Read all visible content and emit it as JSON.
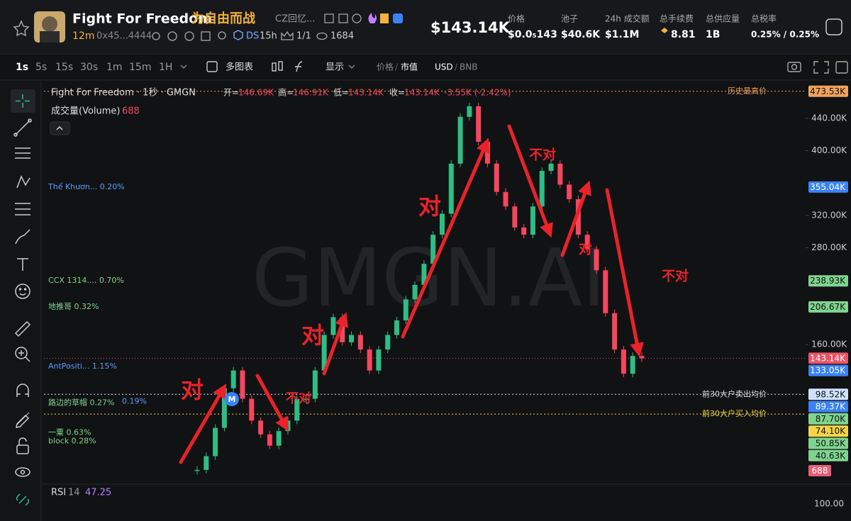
{
  "header": {
    "title": "Fight For Freedom",
    "title_cn": "为自由而战",
    "subtitle": "CZ回忆...",
    "age": "12m",
    "address": "0x45...4444",
    "ds": "DS",
    "ds_time": "15h",
    "crown": "1/1",
    "views": "1684",
    "market_cap": "$143.14K",
    "stats": [
      {
        "label": "价格",
        "value": "$0.0₅143"
      },
      {
        "label": "池子",
        "value": "$40.6K"
      },
      {
        "label": "24h 成交额",
        "value": "$1.1M"
      },
      {
        "label": "总手续费",
        "value": "8.81"
      },
      {
        "label": "总供应量",
        "value": "1B"
      },
      {
        "label": "总税率",
        "value": "0.25% / 0.25%"
      }
    ]
  },
  "toolbar": {
    "intervals": [
      "1s",
      "5s",
      "15s",
      "30s",
      "1m",
      "15m",
      "1H"
    ],
    "multi_chart": "多图表",
    "display": "显示",
    "price": "价格",
    "mcap": "市值",
    "usd": "USD",
    "bnb": "BNB"
  },
  "legend": {
    "name": "Fight For Freedom · 1秒 · GMGN",
    "open_label": "开=",
    "open": "146.69K",
    "high_label": "高=",
    "high": "146.91K",
    "low_label": "低=",
    "low": "143.14K",
    "close_label": "收=",
    "close": "143.14K",
    "change": "-3.55K (-2.42%)",
    "volume_label": "成交量(Volume)",
    "volume": "688"
  },
  "watermark": "GMGN.AI",
  "m_badge": "M",
  "chart_data": {
    "type": "candlestick",
    "ylim": [
      -10,
      483
    ],
    "yticks": [
      {
        "value": 440,
        "label": "440.00K"
      },
      {
        "value": 400,
        "label": "400.00K"
      },
      {
        "value": 320,
        "label": "320.00K"
      },
      {
        "value": 280,
        "label": "280.00K"
      },
      {
        "value": 160,
        "label": "160.00K"
      }
    ],
    "up_color": "#2ebd85",
    "down_color": "#f6465d",
    "values": [
      5,
      22,
      57,
      106,
      128,
      93,
      66,
      49,
      35,
      53,
      66,
      93,
      93,
      128,
      172,
      194,
      163,
      172,
      154,
      128,
      154,
      172,
      190,
      216,
      234,
      260,
      296,
      322,
      384,
      442,
      455,
      411,
      384,
      349,
      331,
      305,
      296,
      331,
      375,
      384,
      358,
      340,
      296,
      278,
      252,
      199,
      154,
      124,
      146,
      143
    ],
    "markers": [
      {
        "value": 473.53,
        "label": "473.53K",
        "color": "#f0a35e",
        "line": "历史最高价"
      },
      {
        "value": 355.04,
        "label": "355.04K",
        "color": "#3b82f6",
        "holder": "Thể Khươn...  0.20%"
      },
      {
        "value": 238.93,
        "label": "238.93K",
        "color": "#7fd48f",
        "holder": "CCX 1314....  0.70%"
      },
      {
        "value": 206.67,
        "label": "206.67K",
        "color": "#7fd48f",
        "holder": "地推哥 0.32%"
      },
      {
        "value": 143.14,
        "label": "143.14K",
        "color": "#e85466"
      },
      {
        "value": 133.05,
        "label": "133.05K",
        "color": "#3b82f6",
        "holder": "AntPositi...  1.15%"
      },
      {
        "value": 98.52,
        "label": "98.52K",
        "color": "#cfe3ff",
        "line": "前30大户卖出均价"
      },
      {
        "value": 89.37,
        "label": "89.37K",
        "color": "#3b82f6",
        "holder": "0.19%"
      },
      {
        "value": 87.7,
        "label": "87.70K",
        "color": "#7fd48f",
        "holder": "路边的草帽 0.27%"
      },
      {
        "value": 74.1,
        "label": "74.10K",
        "color": "#f5d547",
        "line": "前30大户买入均价"
      },
      {
        "value": 50.85,
        "label": "50.85K",
        "color": "#7fd48f",
        "holder": "一粟 0.63%"
      },
      {
        "value": 40.63,
        "label": "40.63K",
        "color": "#7fd48f",
        "holder": "block 0.28%"
      }
    ],
    "volume_tag": "688",
    "annotations": [
      "对",
      "不对",
      "对",
      "对",
      "不对",
      "对",
      "不对"
    ]
  },
  "rsi": {
    "label": "RSI",
    "period": "14",
    "value": "47.25",
    "axis": "100.00"
  }
}
